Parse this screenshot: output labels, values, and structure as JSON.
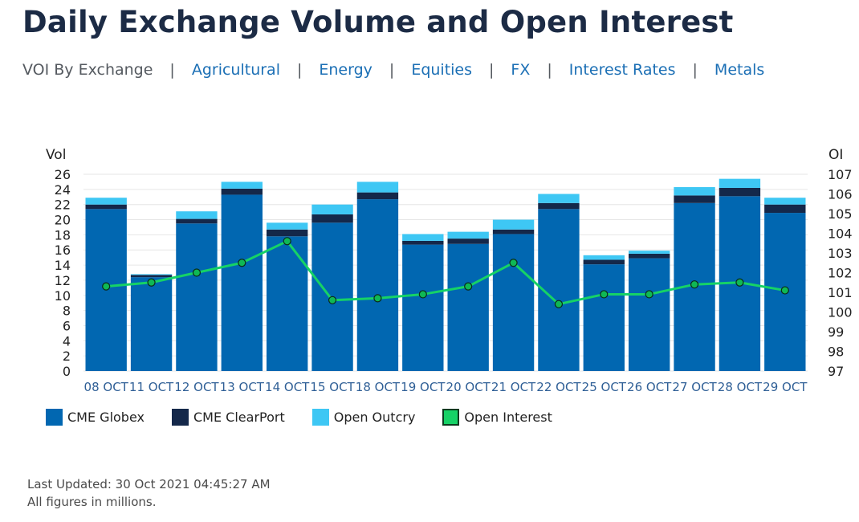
{
  "header": {
    "title": "Daily Exchange Volume and Open Interest"
  },
  "nav": {
    "current": "VOI By Exchange",
    "separator": "|",
    "links": [
      "Agricultural",
      "Energy",
      "Equities",
      "FX",
      "Interest Rates",
      "Metals"
    ]
  },
  "chart_data": {
    "type": "bar",
    "stacked": true,
    "categories": [
      "08 OCT",
      "11 OCT",
      "12 OCT",
      "13 OCT",
      "14 OCT",
      "15 OCT",
      "18 OCT",
      "19 OCT",
      "20 OCT",
      "21 OCT",
      "22 OCT",
      "25 OCT",
      "26 OCT",
      "27 OCT",
      "28 OCT",
      "29 OCT"
    ],
    "y_left": {
      "label": "Vol",
      "min": 0,
      "max": 26,
      "ticks": [
        0,
        2,
        4,
        6,
        8,
        10,
        12,
        14,
        16,
        18,
        20,
        22,
        24,
        26
      ]
    },
    "y_right": {
      "label": "OI",
      "min": 97,
      "max": 107,
      "ticks": [
        97,
        98,
        99,
        100,
        101,
        102,
        103,
        104,
        105,
        106,
        107
      ]
    },
    "series": [
      {
        "name": "CME Globex",
        "type": "bar",
        "color": "#0167b1",
        "values": [
          21.4,
          12.4,
          19.5,
          23.3,
          17.8,
          19.6,
          22.7,
          16.7,
          16.8,
          18.1,
          21.4,
          14.1,
          14.9,
          22.2,
          23.1,
          20.9
        ]
      },
      {
        "name": "CME ClearPort",
        "type": "bar",
        "color": "#14284a",
        "values": [
          0.6,
          0.3,
          0.6,
          0.8,
          0.9,
          1.1,
          0.9,
          0.5,
          0.7,
          0.6,
          0.8,
          0.6,
          0.6,
          1.0,
          1.1,
          1.1
        ]
      },
      {
        "name": "Open Outcry",
        "type": "bar",
        "color": "#3ec7f4",
        "values": [
          0.9,
          0.1,
          1.0,
          0.9,
          0.9,
          1.3,
          1.4,
          0.9,
          0.9,
          1.3,
          1.2,
          0.6,
          0.4,
          1.1,
          1.2,
          0.9
        ]
      },
      {
        "name": "Open Interest",
        "type": "line",
        "axis": "right",
        "color": "#16d266",
        "marker_color": "#0fb855",
        "values": [
          101.3,
          101.5,
          102.0,
          102.5,
          103.6,
          100.6,
          100.7,
          100.9,
          101.3,
          102.5,
          100.4,
          100.9,
          100.9,
          101.4,
          101.5,
          101.1
        ]
      }
    ],
    "gridlines": true,
    "legend_position": "bottom-left"
  },
  "legend": [
    {
      "label": "CME Globex",
      "color": "#0167b1",
      "border": "#0167b1"
    },
    {
      "label": "CME ClearPort",
      "color": "#14284a",
      "border": "#14284a"
    },
    {
      "label": "Open Outcry",
      "color": "#3ec7f4",
      "border": "#3ec7f4"
    },
    {
      "label": "Open Interest",
      "color": "#16d266",
      "border": "#0b3b1f"
    }
  ],
  "footer": {
    "updated": "Last Updated: 30 Oct 2021 04:45:27 AM",
    "note": "All figures in millions."
  }
}
